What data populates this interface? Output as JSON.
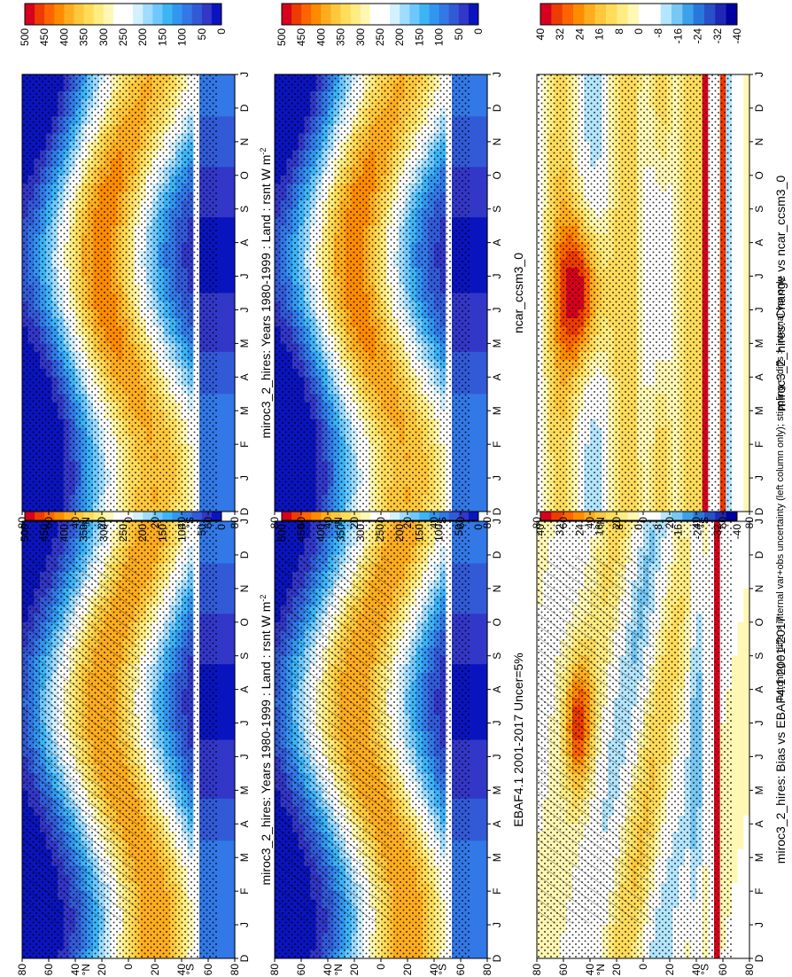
{
  "footnote": "hatching = diffs > internal var+obs uncertainty (left column only); stippling = diffs > internal var only",
  "chart_data": [
    {
      "type": "heatmap",
      "panel": "top-left",
      "title": "miroc3_2_hires: Years 1980-1999 : Land : rsnt W m",
      "title_sup": "-2",
      "x_ticks": [
        "D",
        "J",
        "F",
        "M",
        "A",
        "M",
        "J",
        "J",
        "A",
        "S",
        "O",
        "N",
        "D",
        "J"
      ],
      "y_ticks": [
        "80",
        "60",
        "40",
        "20",
        "0",
        "20",
        "40",
        "60",
        "80"
      ],
      "y_label_n": "°N",
      "y_label_s": "°S",
      "colorbar": [
        "500",
        "450",
        "400",
        "350",
        "300",
        "250",
        "200",
        "150",
        "100",
        "50",
        "0"
      ],
      "cmap": "abs",
      "vrange": [
        0,
        500
      ],
      "hatching": true,
      "stippling": true
    },
    {
      "type": "heatmap",
      "panel": "top-right",
      "title": "miroc3_2_hires: Years 1980-1999 : Land : rsnt W m",
      "title_sup": "-2",
      "x_ticks": [
        "D",
        "J",
        "F",
        "M",
        "A",
        "M",
        "J",
        "J",
        "A",
        "S",
        "O",
        "N",
        "D",
        "J"
      ],
      "y_ticks": [
        "80",
        "60",
        "40",
        "20",
        "0",
        "20",
        "40",
        "60",
        "80"
      ],
      "y_label_n": "°N",
      "y_label_s": "°S",
      "colorbar": [
        "500",
        "450",
        "400",
        "350",
        "300",
        "250",
        "200",
        "150",
        "100",
        "50",
        "0"
      ],
      "cmap": "abs",
      "vrange": [
        0,
        500
      ],
      "hatching": false,
      "stippling": true
    },
    {
      "type": "heatmap",
      "panel": "middle-left",
      "title": "EBAF4.1 2001-2017 Uncer=5%",
      "x_ticks": [
        "D",
        "J",
        "F",
        "M",
        "A",
        "M",
        "J",
        "J",
        "A",
        "S",
        "O",
        "N",
        "D",
        "J"
      ],
      "y_ticks": [
        "80",
        "60",
        "40",
        "20",
        "0",
        "20",
        "40",
        "60",
        "80"
      ],
      "y_label_n": "°N",
      "y_label_s": "°S",
      "colorbar": [
        "500",
        "450",
        "400",
        "350",
        "300",
        "250",
        "200",
        "150",
        "100",
        "50",
        "0"
      ],
      "cmap": "abs",
      "vrange": [
        0,
        500
      ],
      "hatching": true,
      "stippling": true
    },
    {
      "type": "heatmap",
      "panel": "middle-right",
      "title": "ncar_ccsm3_0",
      "x_ticks": [
        "D",
        "J",
        "F",
        "M",
        "A",
        "M",
        "J",
        "J",
        "A",
        "S",
        "O",
        "N",
        "D",
        "J"
      ],
      "y_ticks": [
        "80",
        "60",
        "40",
        "20",
        "0",
        "20",
        "40",
        "60",
        "80"
      ],
      "y_label_n": "°N",
      "y_label_s": "°S",
      "colorbar": [
        "500",
        "450",
        "400",
        "350",
        "300",
        "250",
        "200",
        "150",
        "100",
        "50",
        "0"
      ],
      "cmap": "abs",
      "vrange": [
        0,
        500
      ],
      "hatching": false,
      "stippling": true
    },
    {
      "type": "heatmap",
      "panel": "bottom-left",
      "title": "miroc3_2_hires: Bias vs EBAF4.1 2001-2017",
      "x_ticks": [
        "D",
        "J",
        "F",
        "M",
        "A",
        "M",
        "J",
        "J",
        "A",
        "S",
        "O",
        "N",
        "D",
        "J"
      ],
      "y_ticks": [
        "80",
        "60",
        "40",
        "20",
        "0",
        "20",
        "40",
        "60",
        "80"
      ],
      "y_label_n": "°N",
      "y_label_s": "°S",
      "colorbar": [
        "40",
        "32",
        "24",
        "16",
        "8",
        "0",
        "-8",
        "-16",
        "-24",
        "-32",
        "-40"
      ],
      "cmap": "diff",
      "vrange": [
        -40,
        40
      ],
      "hatching": true,
      "stippling": true
    },
    {
      "type": "heatmap",
      "panel": "bottom-right",
      "title": "miroc3_2_hires: Change vs ncar_ccsm3_0",
      "x_ticks": [
        "D",
        "J",
        "F",
        "M",
        "A",
        "M",
        "J",
        "J",
        "A",
        "S",
        "O",
        "N",
        "D",
        "J"
      ],
      "y_ticks": [
        "80",
        "60",
        "40",
        "20",
        "0",
        "20",
        "40",
        "60",
        "80"
      ],
      "y_label_n": "°N",
      "y_label_s": "°S",
      "colorbar": [
        "40",
        "32",
        "24",
        "16",
        "8",
        "0",
        "-8",
        "-16",
        "-24",
        "-32",
        "-40"
      ],
      "cmap": "diff",
      "vrange": [
        -40,
        40
      ],
      "hatching": false,
      "stippling": true
    }
  ]
}
